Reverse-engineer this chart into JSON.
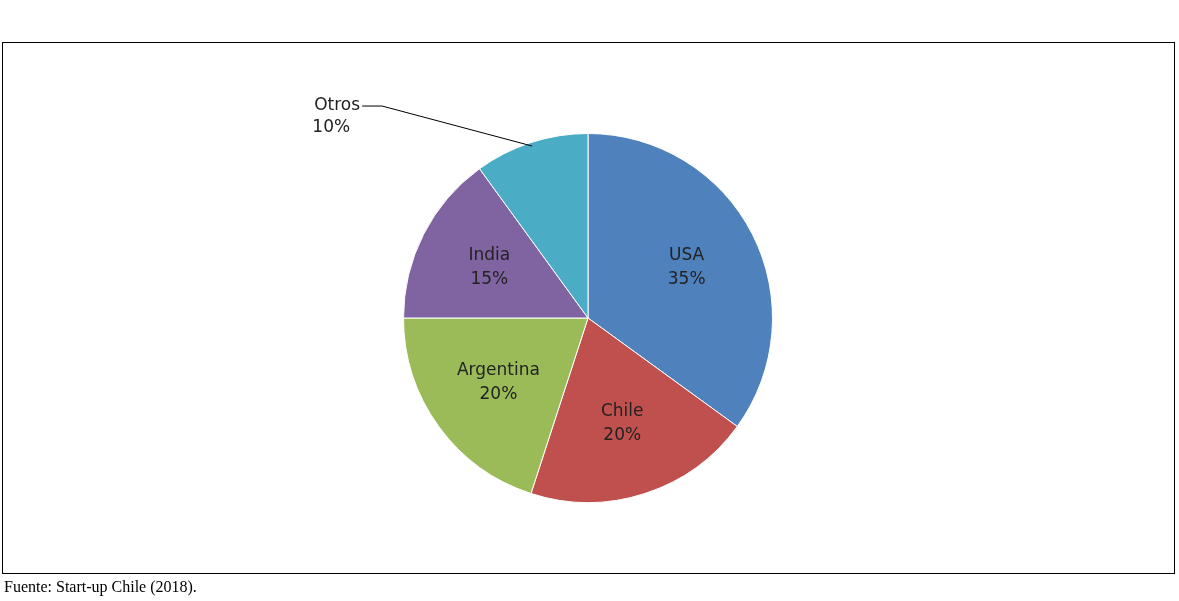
{
  "chart_data": {
    "type": "pie",
    "categories": [
      "USA",
      "Chile",
      "Argentina",
      "India",
      "Otros"
    ],
    "values": [
      35,
      20,
      20,
      15,
      10
    ],
    "colors": [
      "#4f81bd",
      "#c0504d",
      "#9bbb59",
      "#8064a2",
      "#4bacc6"
    ],
    "value_labels": [
      "35%",
      "20%",
      "20%",
      "15%",
      "10%"
    ],
    "legend": false,
    "annotations": [
      "Fuente: Start-up Chile (2018)."
    ]
  }
}
